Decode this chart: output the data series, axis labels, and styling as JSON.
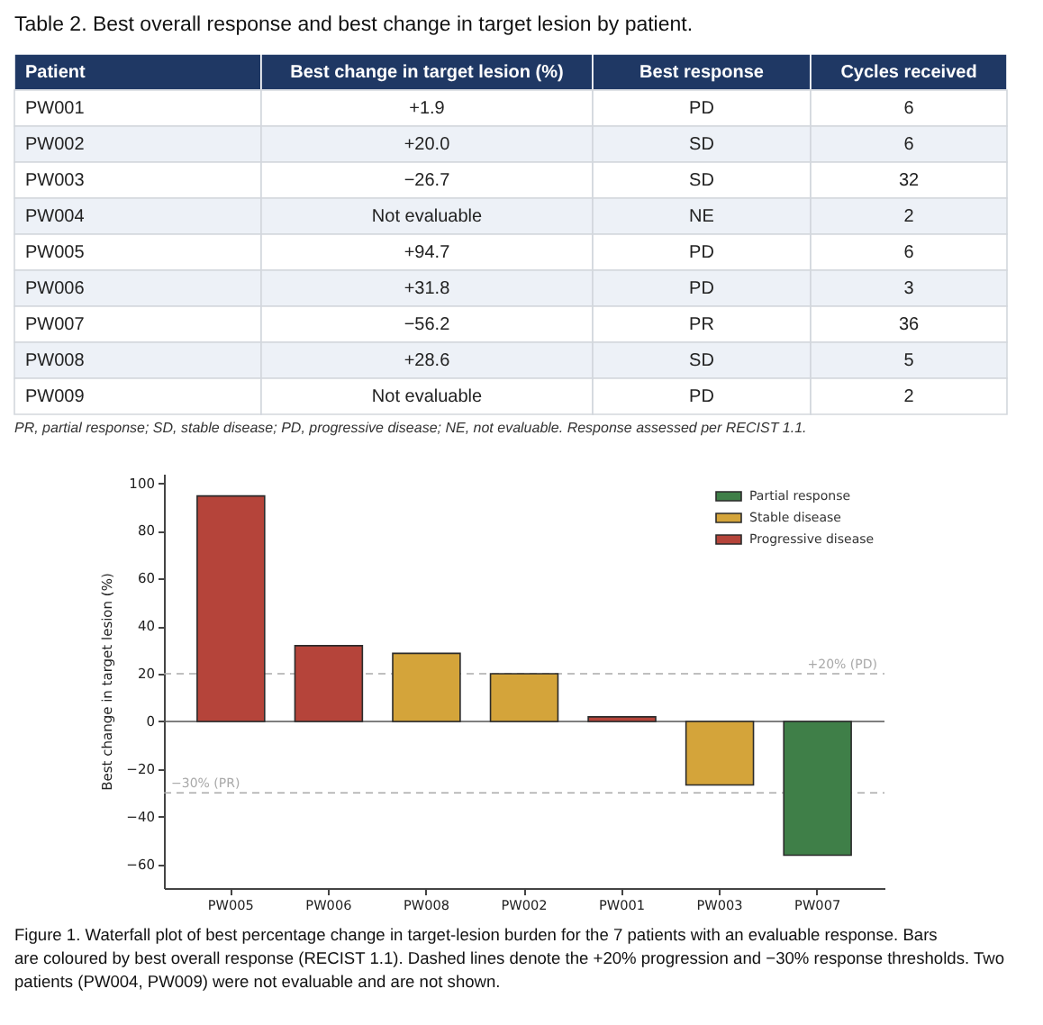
{
  "chart_data": [
    {
      "type": "other",
      "title": "Table 2. Best overall response and best change in target lesion by patient.",
      "categories": [
        "Patient",
        "Best change in target lesion (%)",
        "Best response",
        "Cycles received"
      ],
      "cell_labels": [
        [
          "PW001",
          "+1.9",
          "PD",
          "6"
        ],
        [
          "PW002",
          "+20.0",
          "SD",
          "6"
        ],
        [
          "PW003",
          "−26.7",
          "SD",
          "32"
        ],
        [
          "PW004",
          "Not evaluable",
          "NE",
          "2"
        ],
        [
          "PW005",
          "+94.7",
          "PD",
          "6"
        ],
        [
          "PW006",
          "+31.8",
          "PD",
          "3"
        ],
        [
          "PW007",
          "−56.2",
          "PR",
          "36"
        ],
        [
          "PW008",
          "+28.6",
          "SD",
          "5"
        ],
        [
          "PW009",
          "Not evaluable",
          "PD",
          "2"
        ]
      ],
      "annotations": [
        "PR, partial response; SD, stable disease; PD, progressive disease; NE, not evaluable. Response assessed per RECIST 1.1."
      ]
    },
    {
      "type": "bar",
      "categories": [
        "PW005",
        "PW006",
        "PW008",
        "PW002",
        "PW001",
        "PW003",
        "PW007"
      ],
      "series": [
        {
          "name": "Partial response",
          "color": "#3f7f48",
          "values": [
            null,
            null,
            null,
            null,
            null,
            null,
            -56.2
          ]
        },
        {
          "name": "Stable disease",
          "color": "#d4a43a",
          "values": [
            null,
            null,
            28.6,
            20.0,
            null,
            -26.7,
            null
          ]
        },
        {
          "name": "Progressive disease",
          "color": "#b5443a",
          "values": [
            94.7,
            31.8,
            null,
            null,
            1.9,
            null,
            null
          ]
        }
      ],
      "ylabel": "Best change in target lesion (%)",
      "ylim": [
        -70,
        104
      ],
      "yticks": [
        -60,
        -40,
        -20,
        0,
        20,
        40,
        60,
        80,
        100
      ],
      "ref_lines": [
        {
          "axis": "y",
          "value": 0,
          "color": "#555555",
          "line_style": "solid"
        },
        {
          "axis": "y",
          "value": 20,
          "label": "+20% (PD)",
          "color": "#aaaaaa",
          "line_style": "dashed"
        },
        {
          "axis": "y",
          "value": -30,
          "label": "−30% (PR)",
          "color": "#aaaaaa",
          "line_style": "dashed"
        }
      ],
      "legend": "top right",
      "grid": false,
      "annotations": [
        "Figure 1. Waterfall plot of best percentage change in target-lesion burden for the 7 patients with an evaluable response. Bars are coloured by best overall response (RECIST 1.1). Dashed lines denote the +20% progression and −30% response thresholds. Two patients (PW004, PW009) were not evaluable and are not shown."
      ]
    }
  ]
}
